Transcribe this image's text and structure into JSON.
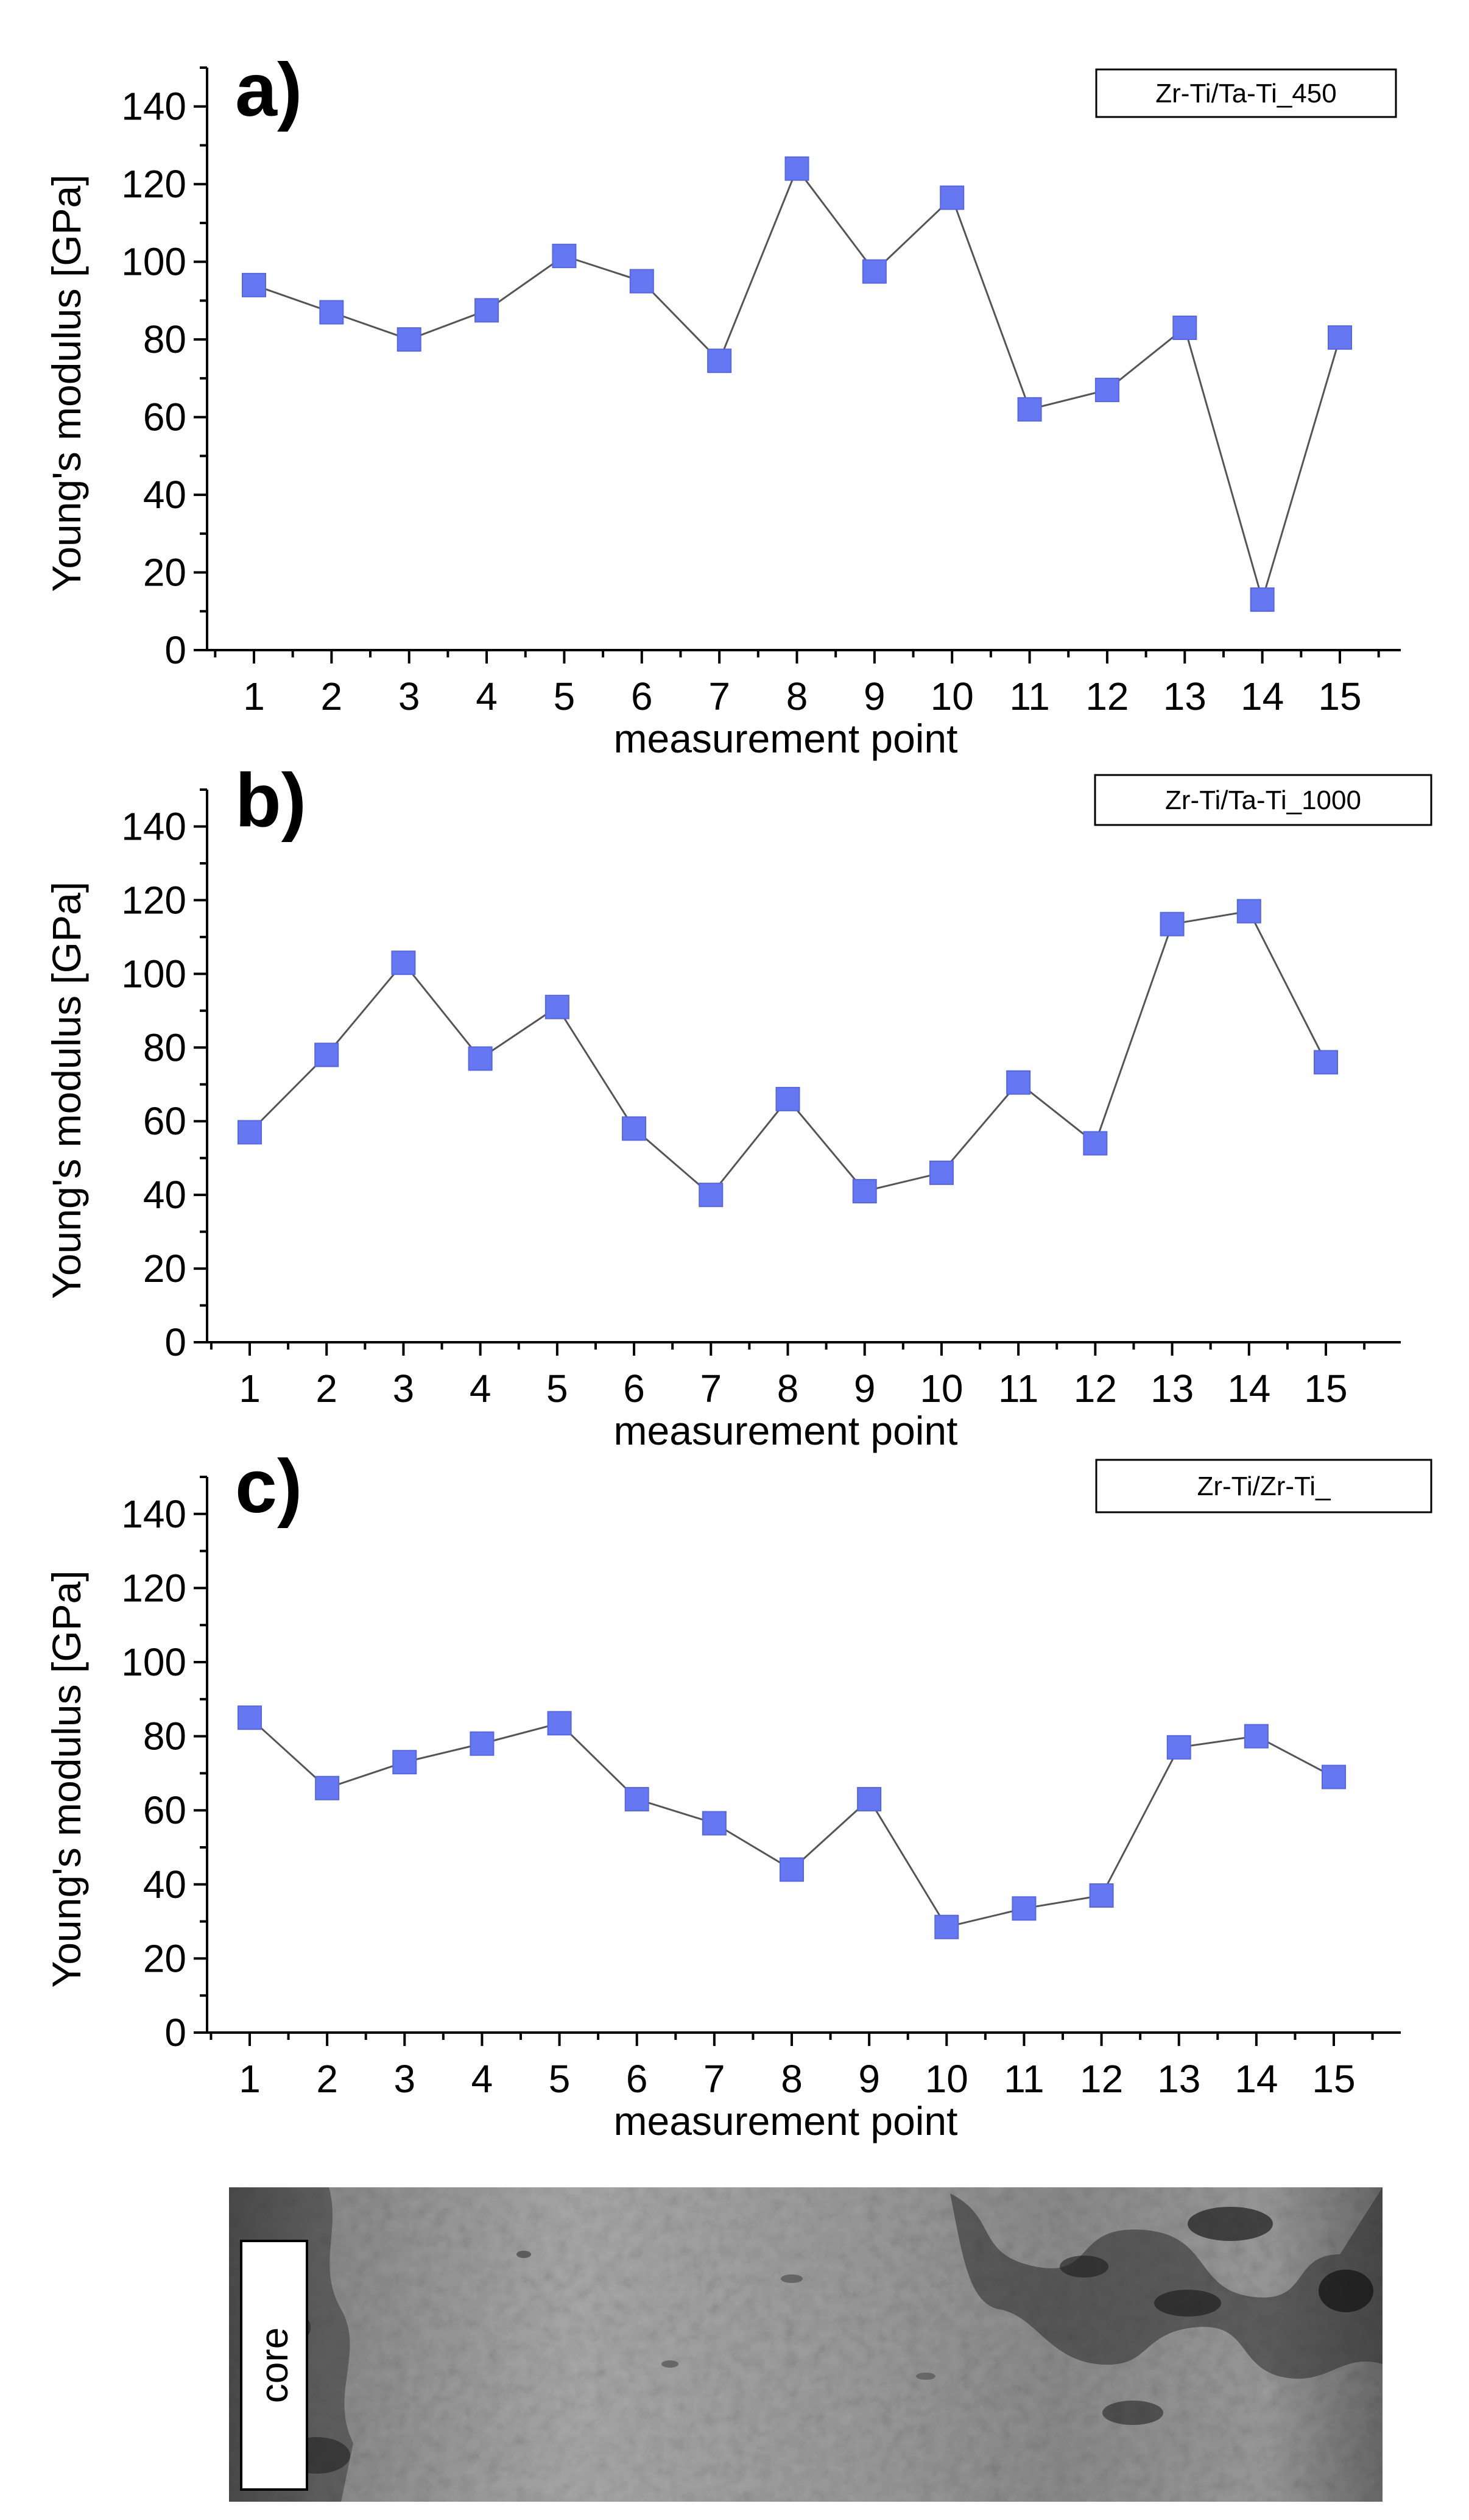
{
  "colors": {
    "marker": "#6677f2",
    "marker_stroke": "#5566e8",
    "line": "#555555",
    "axis": "#000000",
    "sem_base": "#8f8f8f"
  },
  "chart_data": [
    {
      "type": "line",
      "panel_label": "a)",
      "legend": "Zr-Ti/Ta-Ti_450",
      "xlabel": "measurement point",
      "ylabel": "Young's modulus [GPa]",
      "ylim": [
        0,
        150
      ],
      "yticks": [
        0,
        20,
        40,
        60,
        80,
        100,
        120,
        140
      ],
      "x": [
        1,
        2,
        3,
        4,
        5,
        6,
        7,
        8,
        9,
        10,
        11,
        12,
        13,
        14,
        15
      ],
      "values": [
        94,
        87,
        80,
        87.5,
        101.5,
        95,
        74.5,
        124,
        97.5,
        116.5,
        62,
        67,
        83,
        13,
        80.5
      ]
    },
    {
      "type": "line",
      "panel_label": "b)",
      "legend": "Zr-Ti/Ta-Ti_1000",
      "xlabel": "measurement point",
      "ylabel": "Young's modulus [GPa]",
      "ylim": [
        0,
        150
      ],
      "yticks": [
        0,
        20,
        40,
        60,
        80,
        100,
        120,
        140
      ],
      "x": [
        1,
        2,
        3,
        4,
        5,
        6,
        7,
        8,
        9,
        10,
        11,
        12,
        13,
        14,
        15
      ],
      "values": [
        57,
        78,
        103,
        77,
        91,
        58,
        40,
        66,
        41,
        46,
        70.5,
        54,
        113.5,
        117,
        76
      ]
    },
    {
      "type": "line",
      "panel_label": "c)",
      "legend": "Zr-Ti/Zr-Ti_",
      "xlabel": "measurement point",
      "ylabel": "Young's modulus [GPa]",
      "ylim": [
        0,
        150
      ],
      "yticks": [
        0,
        20,
        40,
        60,
        80,
        100,
        120,
        140
      ],
      "x": [
        1,
        2,
        3,
        4,
        5,
        6,
        7,
        8,
        9,
        10,
        11,
        12,
        13,
        14,
        15
      ],
      "values": [
        85,
        66,
        73,
        78,
        83.5,
        63,
        56.5,
        44,
        63,
        28.5,
        33.5,
        37,
        77,
        80,
        69
      ]
    }
  ],
  "micrograph": {
    "label": "core"
  }
}
